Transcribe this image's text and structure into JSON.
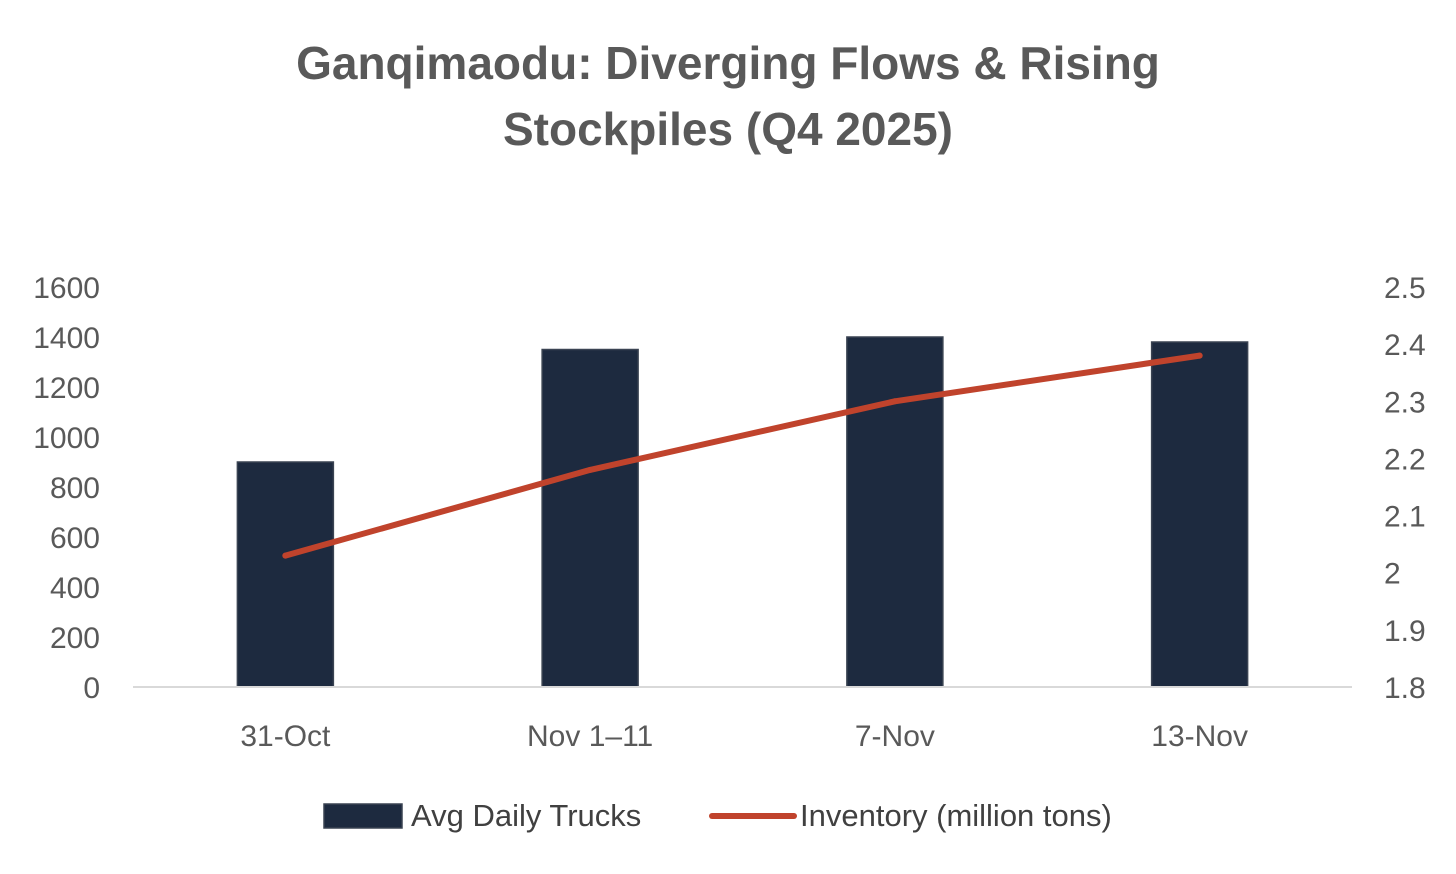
{
  "chart_data": {
    "type": "bar",
    "title_lines": [
      "Ganqimaodu: Diverging Flows & Rising",
      "Stockpiles (Q4 2025)"
    ],
    "categories": [
      "31-Oct",
      "Nov 1–11",
      "7-Nov",
      "13-Nov"
    ],
    "series": [
      {
        "name": "Avg Daily Trucks",
        "type": "bar",
        "axis": "left",
        "color": "#1d2a3f",
        "values": [
          900,
          1350,
          1400,
          1380
        ]
      },
      {
        "name": "Inventory (million tons)",
        "type": "line",
        "axis": "right",
        "color": "#c0432c",
        "values": [
          2.03,
          2.18,
          2.3,
          2.38
        ]
      }
    ],
    "y_left": {
      "min": 0,
      "max": 1600,
      "ticks": [
        "0",
        "200",
        "400",
        "600",
        "800",
        "1000",
        "1200",
        "1400",
        "1600"
      ]
    },
    "y_right": {
      "min": 1.8,
      "max": 2.5,
      "ticks": [
        "1.8",
        "1.9",
        "2",
        "2.1",
        "2.2",
        "2.3",
        "2.4",
        "2.5"
      ]
    },
    "grid": false,
    "legend_position": "bottom"
  }
}
